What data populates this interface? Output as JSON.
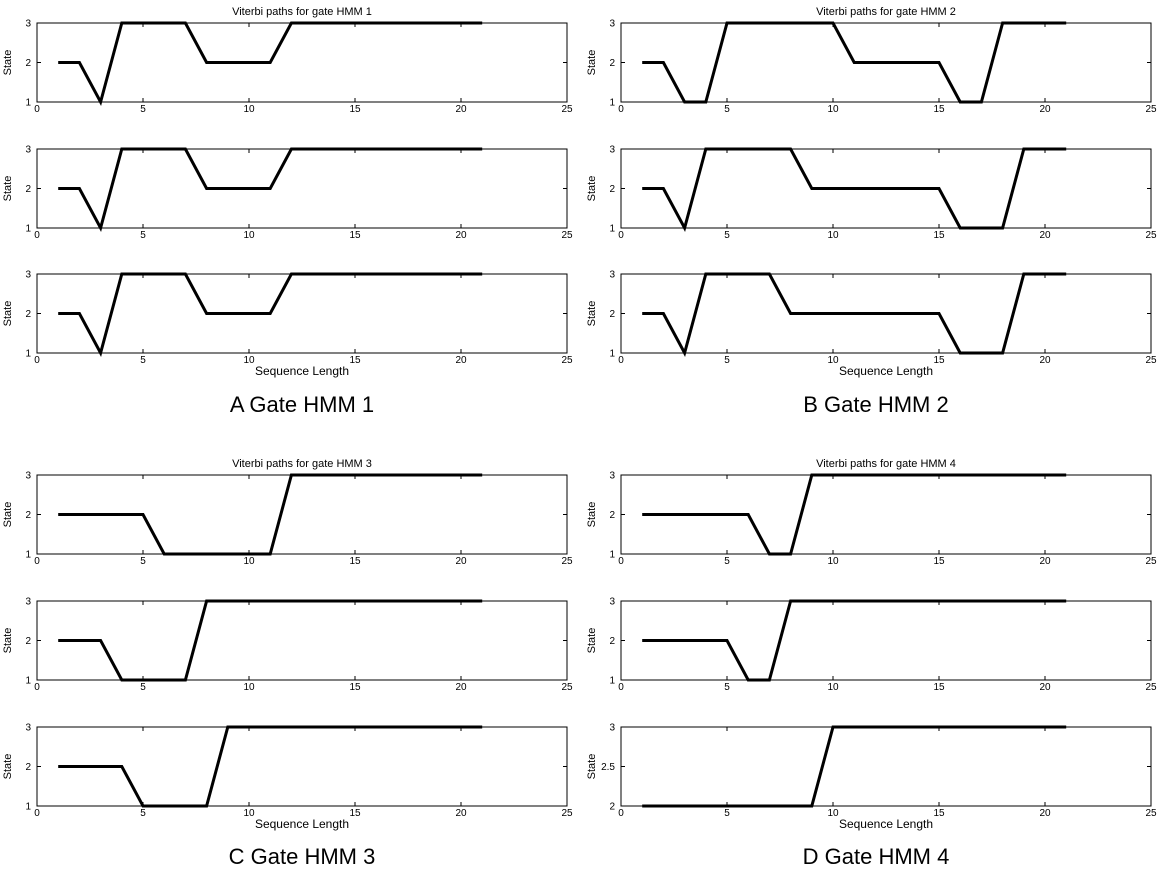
{
  "chart_data": [
    {
      "type": "line",
      "panel": "A",
      "caption": "A Gate HMM 1",
      "title": "Viterbi paths for gate HMM 1",
      "xlabel": "Sequence Length",
      "ylabel": "State",
      "xlim": [
        0,
        25
      ],
      "xticks": [
        "0",
        "5",
        "10",
        "15",
        "20",
        "25"
      ],
      "subplots": [
        {
          "ylim": [
            1,
            3
          ],
          "yticks": [
            "1",
            "2",
            "3"
          ],
          "x": [
            1,
            2,
            3,
            4,
            5,
            6,
            7,
            8,
            9,
            10,
            11,
            12,
            13,
            14,
            15,
            16,
            17,
            18,
            19,
            20,
            21
          ],
          "y": [
            2,
            2,
            1,
            3,
            3,
            3,
            3,
            2,
            2,
            2,
            2,
            3,
            3,
            3,
            3,
            3,
            3,
            3,
            3,
            3,
            3
          ]
        },
        {
          "ylim": [
            1,
            3
          ],
          "yticks": [
            "1",
            "2",
            "3"
          ],
          "x": [
            1,
            2,
            3,
            4,
            5,
            6,
            7,
            8,
            9,
            10,
            11,
            12,
            13,
            14,
            15,
            16,
            17,
            18,
            19,
            20,
            21
          ],
          "y": [
            2,
            2,
            1,
            3,
            3,
            3,
            3,
            2,
            2,
            2,
            2,
            3,
            3,
            3,
            3,
            3,
            3,
            3,
            3,
            3,
            3
          ]
        },
        {
          "ylim": [
            1,
            3
          ],
          "yticks": [
            "1",
            "2",
            "3"
          ],
          "x": [
            1,
            2,
            3,
            4,
            5,
            6,
            7,
            8,
            9,
            10,
            11,
            12,
            13,
            14,
            15,
            16,
            17,
            18,
            19,
            20,
            21
          ],
          "y": [
            2,
            2,
            1,
            3,
            3,
            3,
            3,
            2,
            2,
            2,
            2,
            3,
            3,
            3,
            3,
            3,
            3,
            3,
            3,
            3,
            3
          ]
        }
      ]
    },
    {
      "type": "line",
      "panel": "B",
      "caption": "B Gate HMM 2",
      "title": "Viterbi paths for gate HMM 2",
      "xlabel": "Sequence Length",
      "ylabel": "State",
      "xlim": [
        0,
        25
      ],
      "xticks": [
        "0",
        "5",
        "10",
        "15",
        "20",
        "25"
      ],
      "subplots": [
        {
          "ylim": [
            1,
            3
          ],
          "yticks": [
            "1",
            "2",
            "3"
          ],
          "x": [
            1,
            2,
            3,
            4,
            5,
            6,
            7,
            8,
            9,
            10,
            11,
            12,
            13,
            14,
            15,
            16,
            17,
            18,
            19,
            20,
            21
          ],
          "y": [
            2,
            2,
            1,
            1,
            3,
            3,
            3,
            3,
            3,
            3,
            2,
            2,
            2,
            2,
            2,
            1,
            1,
            3,
            3,
            3,
            3
          ]
        },
        {
          "ylim": [
            1,
            3
          ],
          "yticks": [
            "1",
            "2",
            "3"
          ],
          "x": [
            1,
            2,
            3,
            4,
            5,
            6,
            7,
            8,
            9,
            10,
            11,
            12,
            13,
            14,
            15,
            16,
            17,
            18,
            19,
            20,
            21
          ],
          "y": [
            2,
            2,
            1,
            3,
            3,
            3,
            3,
            3,
            2,
            2,
            2,
            2,
            2,
            2,
            2,
            1,
            1,
            1,
            3,
            3,
            3
          ]
        },
        {
          "ylim": [
            1,
            3
          ],
          "yticks": [
            "1",
            "2",
            "3"
          ],
          "x": [
            1,
            2,
            3,
            4,
            5,
            6,
            7,
            8,
            9,
            10,
            11,
            12,
            13,
            14,
            15,
            16,
            17,
            18,
            19,
            20,
            21
          ],
          "y": [
            2,
            2,
            1,
            3,
            3,
            3,
            3,
            2,
            2,
            2,
            2,
            2,
            2,
            2,
            2,
            1,
            1,
            1,
            3,
            3,
            3
          ]
        }
      ]
    },
    {
      "type": "line",
      "panel": "C",
      "caption": "C Gate HMM 3",
      "title": "Viterbi paths for gate HMM 3",
      "xlabel": "Sequence Length",
      "ylabel": "State",
      "xlim": [
        0,
        25
      ],
      "xticks": [
        "0",
        "5",
        "10",
        "15",
        "20",
        "25"
      ],
      "subplots": [
        {
          "ylim": [
            1,
            3
          ],
          "yticks": [
            "1",
            "2",
            "3"
          ],
          "x": [
            1,
            2,
            3,
            4,
            5,
            6,
            7,
            8,
            9,
            10,
            11,
            12,
            13,
            14,
            15,
            16,
            17,
            18,
            19,
            20,
            21
          ],
          "y": [
            2,
            2,
            2,
            2,
            2,
            1,
            1,
            1,
            1,
            1,
            1,
            3,
            3,
            3,
            3,
            3,
            3,
            3,
            3,
            3,
            3
          ]
        },
        {
          "ylim": [
            1,
            3
          ],
          "yticks": [
            "1",
            "2",
            "3"
          ],
          "x": [
            1,
            2,
            3,
            4,
            5,
            6,
            7,
            8,
            9,
            10,
            11,
            12,
            13,
            14,
            15,
            16,
            17,
            18,
            19,
            20,
            21
          ],
          "y": [
            2,
            2,
            2,
            1,
            1,
            1,
            1,
            3,
            3,
            3,
            3,
            3,
            3,
            3,
            3,
            3,
            3,
            3,
            3,
            3,
            3
          ]
        },
        {
          "ylim": [
            1,
            3
          ],
          "yticks": [
            "1",
            "2",
            "3"
          ],
          "x": [
            1,
            2,
            3,
            4,
            5,
            6,
            7,
            8,
            9,
            10,
            11,
            12,
            13,
            14,
            15,
            16,
            17,
            18,
            19,
            20,
            21
          ],
          "y": [
            2,
            2,
            2,
            2,
            1,
            1,
            1,
            1,
            3,
            3,
            3,
            3,
            3,
            3,
            3,
            3,
            3,
            3,
            3,
            3,
            3
          ]
        }
      ]
    },
    {
      "type": "line",
      "panel": "D",
      "caption": "D Gate HMM 4",
      "title": "Viterbi paths for gate HMM 4",
      "xlabel": "Sequence Length",
      "ylabel": "State",
      "xlim": [
        0,
        25
      ],
      "xticks": [
        "0",
        "5",
        "10",
        "15",
        "20",
        "25"
      ],
      "subplots": [
        {
          "ylim": [
            1,
            3
          ],
          "yticks": [
            "1",
            "2",
            "3"
          ],
          "x": [
            1,
            2,
            3,
            4,
            5,
            6,
            7,
            8,
            9,
            10,
            11,
            12,
            13,
            14,
            15,
            16,
            17,
            18,
            19,
            20,
            21
          ],
          "y": [
            2,
            2,
            2,
            2,
            2,
            2,
            1,
            1,
            3,
            3,
            3,
            3,
            3,
            3,
            3,
            3,
            3,
            3,
            3,
            3,
            3
          ]
        },
        {
          "ylim": [
            1,
            3
          ],
          "yticks": [
            "1",
            "2",
            "3"
          ],
          "x": [
            1,
            2,
            3,
            4,
            5,
            6,
            7,
            8,
            9,
            10,
            11,
            12,
            13,
            14,
            15,
            16,
            17,
            18,
            19,
            20,
            21
          ],
          "y": [
            2,
            2,
            2,
            2,
            2,
            1,
            1,
            3,
            3,
            3,
            3,
            3,
            3,
            3,
            3,
            3,
            3,
            3,
            3,
            3,
            3
          ]
        },
        {
          "ylim": [
            2,
            3
          ],
          "yticks": [
            "2",
            "2.5",
            "3"
          ],
          "x": [
            1,
            2,
            3,
            4,
            5,
            6,
            7,
            8,
            9,
            10,
            11,
            12,
            13,
            14,
            15,
            16,
            17,
            18,
            19,
            20,
            21
          ],
          "y": [
            2,
            2,
            2,
            2,
            2,
            2,
            2,
            2,
            2,
            3,
            3,
            3,
            3,
            3,
            3,
            3,
            3,
            3,
            3,
            3,
            3
          ]
        }
      ]
    }
  ]
}
